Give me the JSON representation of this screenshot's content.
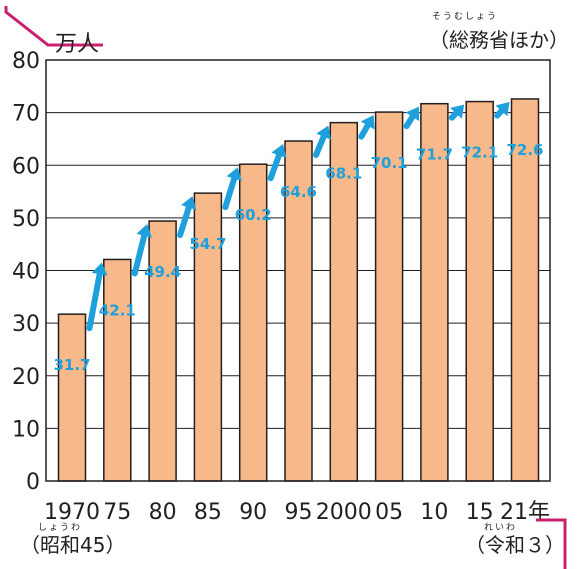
{
  "chart_data": {
    "type": "bar",
    "unit_label": "万人",
    "source": "（総務省ほか）",
    "source_ruby": "そうむしょう",
    "categories": [
      "1970",
      "75",
      "80",
      "85",
      "90",
      "95",
      "2000",
      "05",
      "10",
      "15",
      "21年"
    ],
    "values": [
      31.7,
      42.1,
      49.4,
      54.7,
      60.2,
      64.6,
      68.1,
      70.1,
      71.7,
      72.1,
      72.6
    ],
    "value_labels": [
      "31.7",
      "42.1",
      "49.4",
      "54.7",
      "60.2",
      "64.6",
      "68.1",
      "70.1",
      "71.7",
      "72.1",
      "72.6"
    ],
    "y_ticks": [
      "0",
      "10",
      "20",
      "30",
      "40",
      "50",
      "60",
      "70",
      "80"
    ],
    "ylim": [
      0,
      80
    ],
    "grid": true,
    "era_start": "（昭和45）",
    "era_start_ruby": "しょうわ",
    "era_end": "（令和３）",
    "era_end_ruby": "れいわ",
    "colors": {
      "bar": "#f7b98a",
      "bar_border": "#231f20",
      "arrow": "#1ea0dc",
      "accent": "#c8206e",
      "grid": "#231f20"
    }
  }
}
